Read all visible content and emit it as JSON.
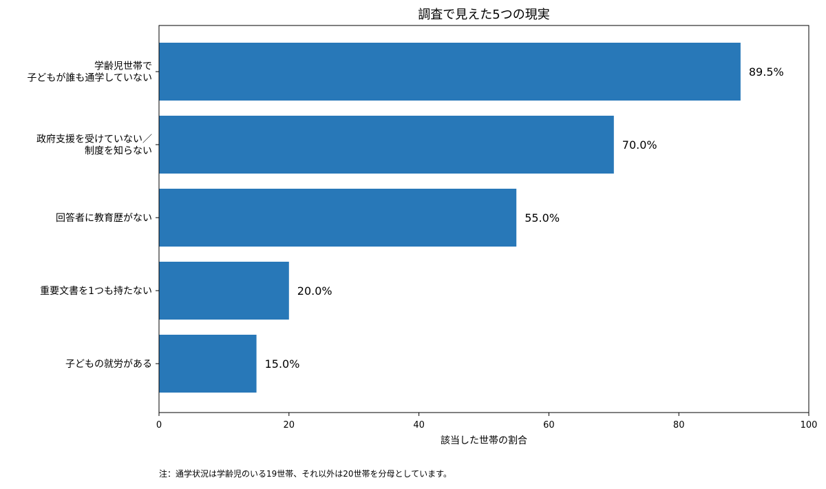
{
  "chart_data": {
    "type": "bar",
    "orientation": "horizontal",
    "title": "調査で見えた5つの現実",
    "xlabel": "該当した世帯の割合",
    "ylabel": "",
    "xlim": [
      0,
      100
    ],
    "xticks": [
      0,
      20,
      40,
      60,
      80,
      100
    ],
    "grid": false,
    "categories": [
      [
        "学齢児世帯で",
        "子どもが誰も通学していない"
      ],
      [
        "政府支援を受けていない／",
        "制度を知らない"
      ],
      [
        "回答者に教育歴がない"
      ],
      [
        "重要文書を1つも持たない"
      ],
      [
        "子どもの就労がある"
      ]
    ],
    "values": [
      89.5,
      70.0,
      55.0,
      20.0,
      15.0
    ],
    "value_labels": [
      "89.5%",
      "70.0%",
      "55.0%",
      "20.0%",
      "15.0%"
    ],
    "bar_color": "#2878b8",
    "footnote": "注：通学状況は学齢児のいる19世帯、それ以外は20世帯を分母としています。"
  }
}
